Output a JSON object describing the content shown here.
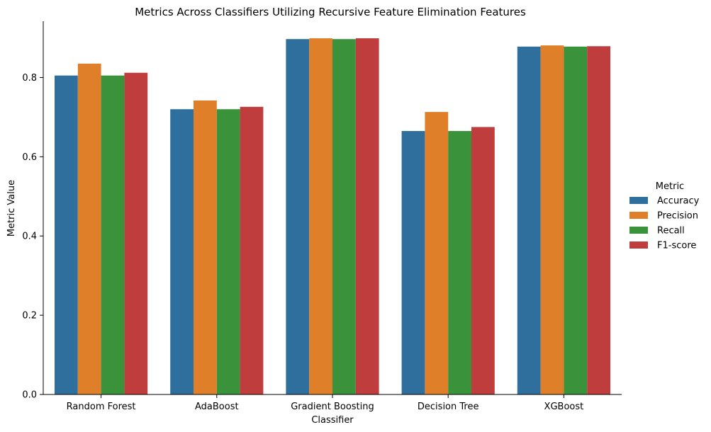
{
  "chart_data": {
    "type": "bar",
    "title": "Metrics Across Classifiers Utilizing Recursive Feature Elimination Features",
    "xlabel": "Classifier",
    "ylabel": "Metric Value",
    "categories": [
      "Random Forest",
      "AdaBoost",
      "Gradient Boosting",
      "Decision Tree",
      "XGBoost"
    ],
    "series": [
      {
        "name": "Accuracy",
        "color": "#2e6f9e",
        "values": [
          0.805,
          0.72,
          0.897,
          0.665,
          0.878
        ]
      },
      {
        "name": "Precision",
        "color": "#e07f2a",
        "values": [
          0.835,
          0.742,
          0.899,
          0.713,
          0.881
        ]
      },
      {
        "name": "Recall",
        "color": "#3a923a",
        "values": [
          0.805,
          0.72,
          0.897,
          0.665,
          0.878
        ]
      },
      {
        "name": "F1-score",
        "color": "#c03d3e",
        "values": [
          0.812,
          0.726,
          0.899,
          0.675,
          0.879
        ]
      }
    ],
    "ylim": [
      0,
      0.942
    ],
    "yticks": [
      0.0,
      0.2,
      0.4,
      0.6,
      0.8
    ],
    "ytick_labels": [
      "0.0",
      "0.2",
      "0.4",
      "0.6",
      "0.8"
    ],
    "grid": false,
    "legend": {
      "title": "Metric",
      "position": "right"
    }
  }
}
